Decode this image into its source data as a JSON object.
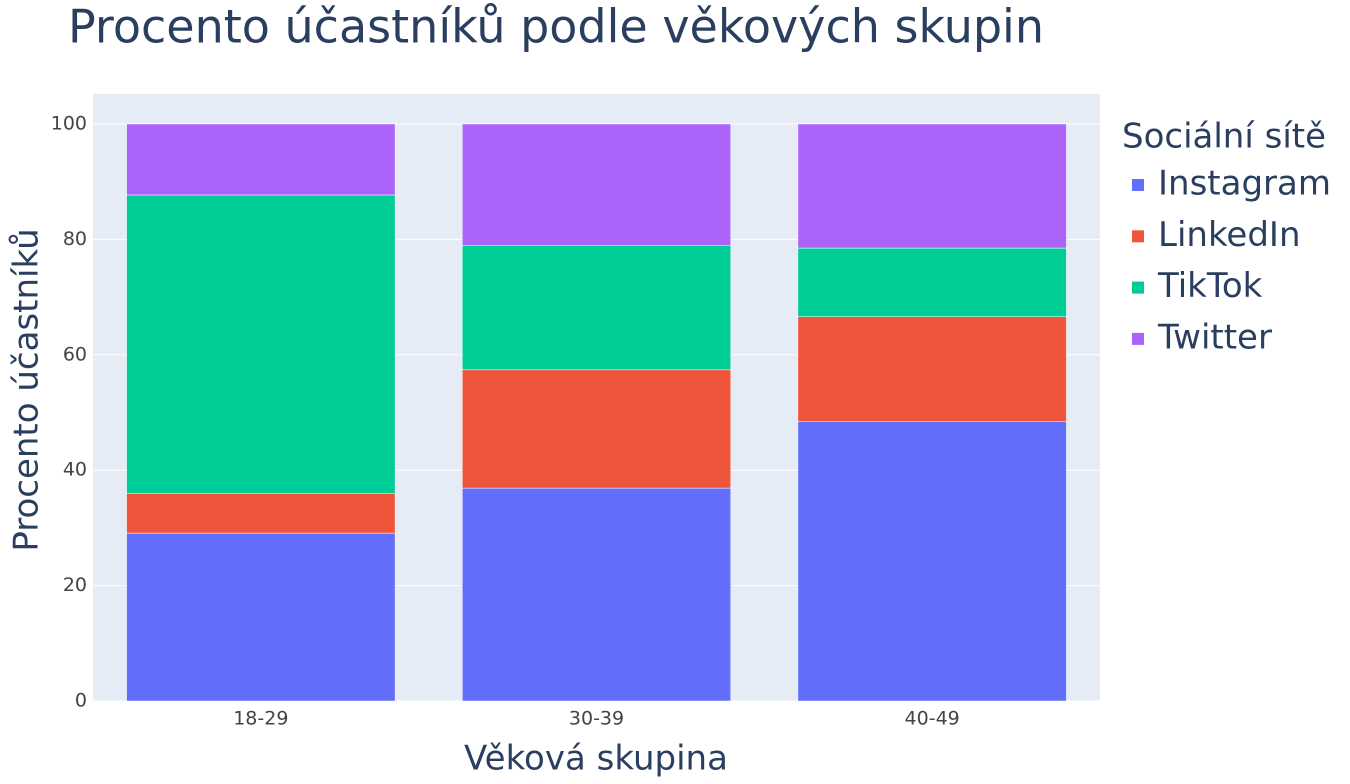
{
  "chart_data": {
    "type": "stacked_bar",
    "title": "Procento účastníků podle věkových skupin",
    "x_label": "Věková skupina",
    "y_label": "Procento účastníků",
    "legend_title": "Sociální sítě",
    "categories": [
      "18-29",
      "30-39",
      "40-49"
    ],
    "series": [
      {
        "name": "Instagram",
        "color": "#636efa",
        "values": [
          29.1,
          36.9,
          48.4
        ]
      },
      {
        "name": "LinkedIn",
        "color": "#ef553b",
        "values": [
          6.9,
          20.5,
          18.2
        ]
      },
      {
        "name": "TikTok",
        "color": "#00cc96",
        "values": [
          51.7,
          21.5,
          11.9
        ]
      },
      {
        "name": "Twitter",
        "color": "#ab63fa",
        "values": [
          12.3,
          21.1,
          21.5
        ]
      }
    ],
    "ylim": [
      0,
      105.2
    ],
    "yticks": [
      0,
      20,
      40,
      60,
      80,
      100
    ],
    "grid": true
  }
}
